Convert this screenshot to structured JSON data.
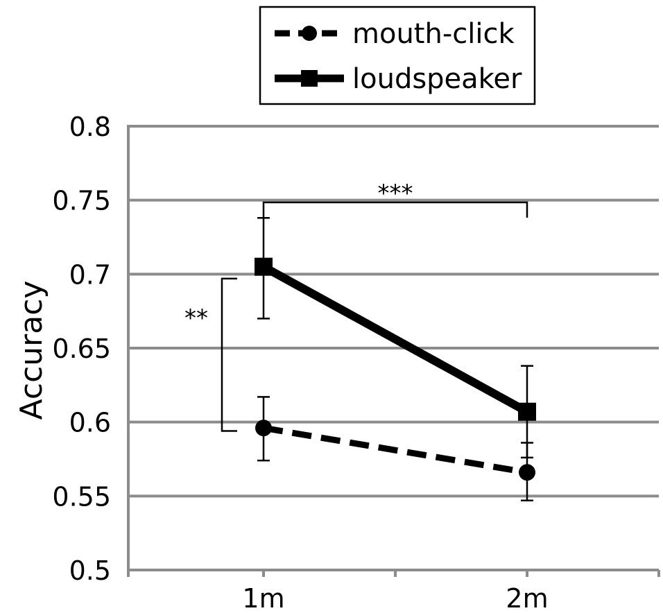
{
  "chart_data": {
    "type": "line",
    "categories": [
      "1m",
      "2m"
    ],
    "ylabel": "Accuracy",
    "xlabel": "",
    "ylim": [
      0.5,
      0.8
    ],
    "yticks": [
      "0.5",
      "0.55",
      "0.6",
      "0.65",
      "0.7",
      "0.75",
      "0.8"
    ],
    "grid": true,
    "legend_position": "top-center",
    "series": [
      {
        "name": "mouth-click",
        "style": "dashed",
        "marker": "circle",
        "values": [
          0.596,
          0.566
        ],
        "error_upper": [
          0.617,
          0.586
        ],
        "error_lower": [
          0.574,
          0.547
        ]
      },
      {
        "name": "loudspeaker",
        "style": "solid",
        "marker": "square",
        "values": [
          0.705,
          0.607
        ],
        "error_upper": [
          0.738,
          0.638
        ],
        "error_lower": [
          0.67,
          0.576
        ]
      }
    ],
    "annotations": [
      {
        "text": "***",
        "between": [
          "1m",
          "2m"
        ],
        "series": "loudspeaker"
      },
      {
        "text": "**",
        "between": [
          "mouth-click",
          "loudspeaker"
        ],
        "category": "1m"
      }
    ],
    "colors": {
      "line": "#000000",
      "grid": "#8c8c8c"
    }
  }
}
